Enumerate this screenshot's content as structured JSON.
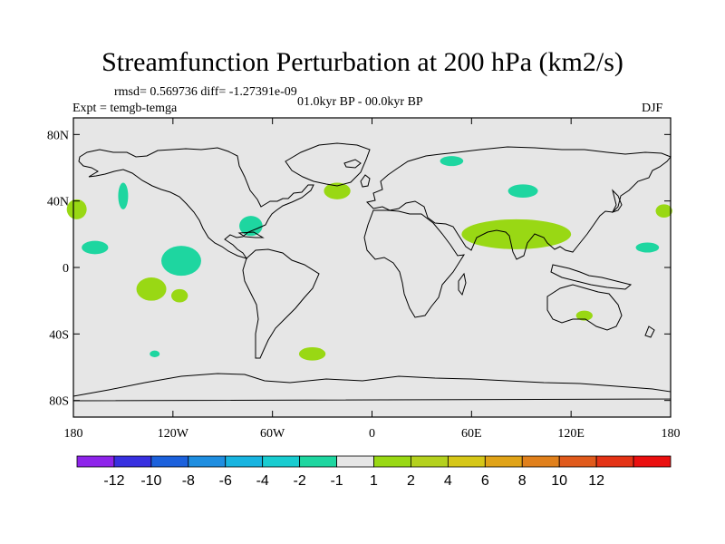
{
  "title": "Streamfunction Perturbation at 200 hPa (km2/s)",
  "stats": "rmsd= 0.569736 diff= -1.27391e-09",
  "experiment": "Expt = temgb-temga",
  "period": "01.0kyr BP - 00.0kyr BP",
  "season": "DJF",
  "lat_labels": [
    "80N",
    "40N",
    "0",
    "40S",
    "80S"
  ],
  "lon_labels": [
    "180",
    "120W",
    "60W",
    "0",
    "60E",
    "120E",
    "180"
  ],
  "lat_values": [
    80,
    40,
    0,
    -40,
    -80
  ],
  "lon_values": [
    -180,
    -120,
    -60,
    0,
    60,
    120,
    180
  ],
  "colors": {
    "background": "#e6e6e6",
    "level_pos1": "#99d814",
    "level_neg1": "#1ed6a0"
  },
  "colorbar": {
    "colors": [
      "#8e24ea",
      "#3830e0",
      "#1c61dc",
      "#1f8ee0",
      "#18b4e0",
      "#19ccd0",
      "#1ed6a0",
      "#e6e6e6",
      "#99d814",
      "#b4d11e",
      "#d6c718",
      "#e0a318",
      "#e0801c",
      "#e05a1c",
      "#e43316",
      "#ea1010"
    ],
    "labels": [
      "-12",
      "-10",
      "-8",
      "-6",
      "-4",
      "-2",
      "-1",
      "1",
      "2",
      "4",
      "6",
      "8",
      "10",
      "12"
    ]
  },
  "anomalies": [
    {
      "name": "anomaly-central-pacific-south",
      "level": 1,
      "lon": -133,
      "lat": -13,
      "rlon": 9,
      "rlat": 7
    },
    {
      "name": "anomaly-south-pacific",
      "level": 1,
      "lon": -116,
      "lat": -17,
      "rlon": 5,
      "rlat": 4
    },
    {
      "name": "anomaly-north-atlantic",
      "level": 1,
      "lon": -21,
      "lat": 46,
      "rlon": 8,
      "rlat": 5
    },
    {
      "name": "anomaly-dateline-north",
      "level": 1,
      "lon": -178,
      "lat": 35,
      "rlon": 6,
      "rlat": 6
    },
    {
      "name": "anomaly-west-pacific-north",
      "level": 1,
      "lon": 176,
      "lat": 34,
      "rlon": 5,
      "rlat": 4
    },
    {
      "name": "anomaly-asia-band",
      "level": 1,
      "lon": 87,
      "lat": 20,
      "rlon": 33,
      "rlat": 9
    },
    {
      "name": "anomaly-australia",
      "level": 1,
      "lon": 128,
      "lat": -29,
      "rlon": 5,
      "rlat": 3
    },
    {
      "name": "anomaly-south-atlantic",
      "level": 1,
      "lon": -36,
      "lat": -52,
      "rlon": 8,
      "rlat": 4
    },
    {
      "name": "anomaly-north-pacific-mid",
      "level": -1,
      "lon": -150,
      "lat": 43,
      "rlon": 3,
      "rlat": 8
    },
    {
      "name": "anomaly-hawaii",
      "level": -1,
      "lon": -167,
      "lat": 12,
      "rlon": 8,
      "rlat": 4
    },
    {
      "name": "anomaly-east-pacific",
      "level": -1,
      "lon": -115,
      "lat": 4,
      "rlon": 12,
      "rlat": 9
    },
    {
      "name": "anomaly-caribbean",
      "level": -1,
      "lon": -73,
      "lat": 25,
      "rlon": 7,
      "rlat": 6
    },
    {
      "name": "anomaly-siberia",
      "level": -1,
      "lon": 48,
      "lat": 64,
      "rlon": 7,
      "rlat": 3
    },
    {
      "name": "anomaly-central-asia",
      "level": -1,
      "lon": 91,
      "lat": 46,
      "rlon": 9,
      "rlat": 4
    },
    {
      "name": "anomaly-west-pacific",
      "level": -1,
      "lon": 166,
      "lat": 12,
      "rlon": 7,
      "rlat": 3
    },
    {
      "name": "anomaly-south-pacific-small",
      "level": -1,
      "lon": -131,
      "lat": -52,
      "rlon": 3,
      "rlat": 2
    }
  ]
}
